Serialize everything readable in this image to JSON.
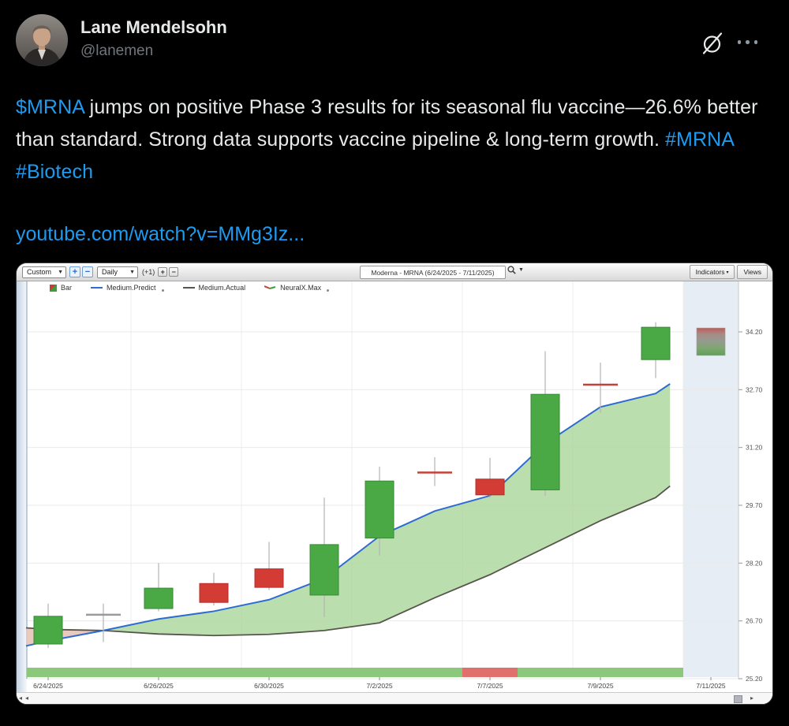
{
  "post": {
    "author": {
      "name": "Lane Mendelsohn",
      "handle": "@lanemen"
    },
    "header_icons": {
      "grok": "grok-logo",
      "more": "more-menu-dots"
    },
    "body_ticker": "$MRNA",
    "body_text": " jumps on positive Phase 3 results for its seasonal flu vaccine—26.6% better than standard. Strong data supports vaccine pipeline & long-term growth. ",
    "body_hashtags": "#MRNA #Biotech",
    "link_text": "youtube.com/watch?v=MMg3Iz..."
  },
  "chart_ui": {
    "range_select": "Custom",
    "interval_select": "Daily",
    "zoom_plus": "+",
    "zoom_minus": "−",
    "offset_label": "(+1)",
    "mini_plus": "+",
    "mini_minus": "−",
    "title": "Moderna - MRNA (6/24/2025 - 7/11/2025)",
    "indicators_button": "Indicators",
    "views_button": "Views",
    "legend": [
      {
        "label": "Bar",
        "icon": "bar-swatch-icon"
      },
      {
        "label": "Medium.Predict",
        "icon": "blue-line-icon"
      },
      {
        "label": "Medium.Actual",
        "icon": "dark-line-icon"
      },
      {
        "label": "NeuralX.Max",
        "icon": "red-green-line-icon"
      }
    ],
    "scrollbar": {
      "left_arrows": "◂◂",
      "right_arrow": "▸"
    }
  },
  "chart_data": {
    "type": "candlestick",
    "title": "Moderna - MRNA (6/24/2025 - 7/11/2025)",
    "x_axis_labels": [
      "6/24/2025",
      "6/26/2025",
      "6/30/2025",
      "7/2/2025",
      "7/7/2025",
      "7/9/2025",
      "7/11/2025"
    ],
    "x_label_days": [
      0,
      2,
      4,
      6,
      8,
      10,
      12
    ],
    "y_ticks": [
      34.2,
      32.7,
      31.2,
      29.7,
      28.2,
      26.7,
      25.2
    ],
    "ylim": [
      25.2,
      35.5
    ],
    "grid_v_days": [
      1.5,
      3.5,
      5.5,
      7.5,
      9.5,
      11.5
    ],
    "candles": [
      {
        "date": "6/24/2025",
        "open": 26.1,
        "high": 27.15,
        "low": 26.0,
        "close": 26.82,
        "kind": "up"
      },
      {
        "date": "6/25/2025",
        "open": 26.86,
        "high": 27.15,
        "low": 26.15,
        "close": 26.86,
        "kind": "doji_gray"
      },
      {
        "date": "6/26/2025",
        "open": 27.02,
        "high": 28.2,
        "low": 26.95,
        "close": 27.55,
        "kind": "up"
      },
      {
        "date": "6/27/2025",
        "open": 27.67,
        "high": 27.95,
        "low": 27.1,
        "close": 27.18,
        "kind": "down"
      },
      {
        "date": "6/30/2025",
        "open": 28.05,
        "high": 28.75,
        "low": 27.5,
        "close": 27.57,
        "kind": "down"
      },
      {
        "date": "7/1/2025",
        "open": 27.37,
        "high": 29.9,
        "low": 26.8,
        "close": 28.68,
        "kind": "up"
      },
      {
        "date": "7/2/2025",
        "open": 28.85,
        "high": 30.7,
        "low": 28.4,
        "close": 30.33,
        "kind": "up"
      },
      {
        "date": "7/3/2025",
        "open": 30.55,
        "high": 30.95,
        "low": 30.2,
        "close": 30.55,
        "kind": "doji_red"
      },
      {
        "date": "7/7/2025",
        "open": 30.38,
        "high": 30.93,
        "low": 29.9,
        "close": 29.97,
        "kind": "down"
      },
      {
        "date": "7/8/2025",
        "open": 30.1,
        "high": 33.7,
        "low": 29.95,
        "close": 32.58,
        "kind": "up"
      },
      {
        "date": "7/9/2025",
        "open": 32.83,
        "high": 33.4,
        "low": 32.1,
        "close": 32.83,
        "kind": "doji_red"
      },
      {
        "date": "7/10/2025",
        "open": 33.48,
        "high": 34.45,
        "low": 33.0,
        "close": 34.32,
        "kind": "up"
      },
      {
        "date": "7/11/2025",
        "open": 33.59,
        "high": 34.3,
        "low": 33.59,
        "close": 34.3,
        "kind": "forecast"
      }
    ],
    "series": [
      {
        "name": "Medium.Predict",
        "color": "#2f6cd1",
        "points": [
          [
            -0.4,
            26.05
          ],
          [
            0,
            26.18
          ],
          [
            1,
            26.45
          ],
          [
            2,
            26.75
          ],
          [
            3,
            26.95
          ],
          [
            4,
            27.25
          ],
          [
            5,
            27.8
          ],
          [
            6,
            28.9
          ],
          [
            7,
            29.55
          ],
          [
            8,
            29.95
          ],
          [
            9,
            31.3
          ],
          [
            10,
            32.25
          ],
          [
            11,
            32.6
          ],
          [
            11.26,
            32.85
          ]
        ]
      },
      {
        "name": "Medium.Actual",
        "color": "#57564c",
        "points": [
          [
            -0.4,
            26.52
          ],
          [
            0,
            26.48
          ],
          [
            1,
            26.45
          ],
          [
            2,
            26.36
          ],
          [
            3,
            26.32
          ],
          [
            4,
            26.35
          ],
          [
            5,
            26.45
          ],
          [
            6,
            26.65
          ],
          [
            7,
            27.3
          ],
          [
            8,
            27.9
          ],
          [
            9,
            28.6
          ],
          [
            10,
            29.3
          ],
          [
            11,
            29.9
          ],
          [
            11.26,
            30.2
          ]
        ]
      }
    ],
    "band": {
      "green_fill": "#afd8a0",
      "pink_fill": "#e8c3b8",
      "cross_index": 2
    },
    "signal_strip": [
      {
        "from": -0.39,
        "to": 7.5,
        "color": "#8cc87c"
      },
      {
        "from": 7.5,
        "to": 8.5,
        "color": "#e0706c"
      },
      {
        "from": 8.5,
        "to": 11.5,
        "color": "#8cc87c"
      }
    ],
    "forecast_zone": {
      "from": 11.5,
      "to": 12.5,
      "color": "#e7edf4"
    },
    "colors": {
      "up": "#4aa845",
      "up_stroke": "#3a8a38",
      "down": "#d33b35",
      "down_stroke": "#b32f2a",
      "wick": "#b3b3b3",
      "doji_gray": "#9a9a9a",
      "doji_red": "#c4403a",
      "grid": "#eaeaea",
      "axis_text": "#555"
    }
  }
}
